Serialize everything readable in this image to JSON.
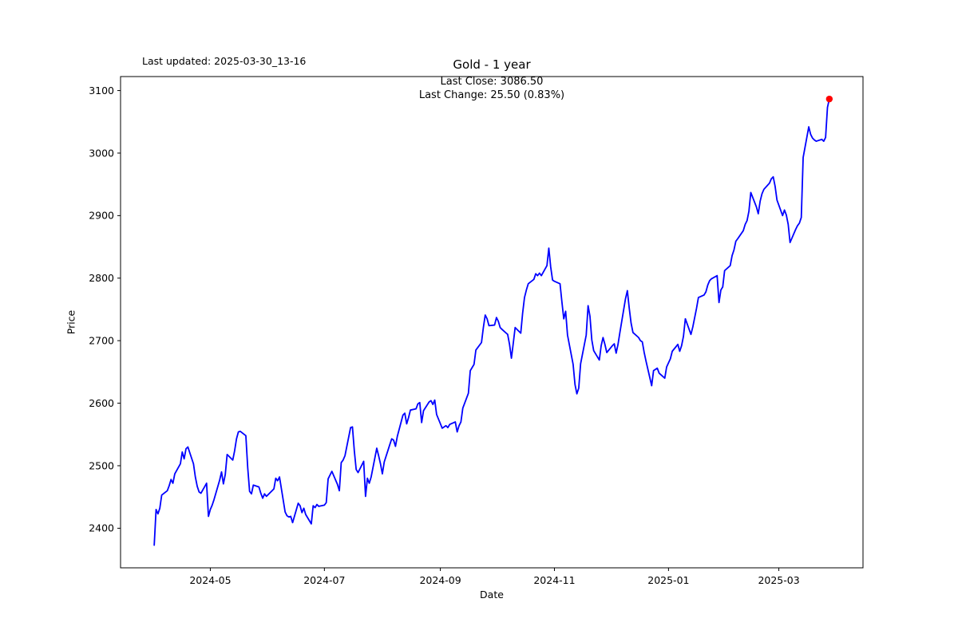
{
  "header": {
    "last_updated": "Last updated: 2025-03-30_13-16",
    "annotation_line1": "Last Close: 3086.50",
    "annotation_line2": "Last Change: 25.50 (0.83%)"
  },
  "chart_data": {
    "type": "line",
    "title": "Gold - 1 year",
    "xlabel": "Date",
    "ylabel": "Price",
    "line_color": "#0000ff",
    "marker_color": "#ff0000",
    "axis_color": "#000000",
    "background_color": "#ffffff",
    "last_close": 3086.5,
    "last_change": "25.50 (0.83%)",
    "x_range": [
      "2024-03-14",
      "2025-04-15"
    ],
    "y_range": [
      2336.7,
      3122.4
    ],
    "grid": false,
    "x_ticks": [
      {
        "date": "2024-05-01",
        "label": "2024-05"
      },
      {
        "date": "2024-07-01",
        "label": "2024-07"
      },
      {
        "date": "2024-09-01",
        "label": "2024-09"
      },
      {
        "date": "2024-11-01",
        "label": "2024-11"
      },
      {
        "date": "2025-01-01",
        "label": "2025-01"
      },
      {
        "date": "2025-03-01",
        "label": "2025-03"
      }
    ],
    "y_ticks": [
      2400,
      2500,
      2600,
      2700,
      2800,
      2900,
      3000,
      3100
    ],
    "series": [
      {
        "name": "Gold",
        "dates": [
          "2024-04-01",
          "2024-04-02",
          "2024-04-03",
          "2024-04-04",
          "2024-04-05",
          "2024-04-08",
          "2024-04-09",
          "2024-04-10",
          "2024-04-11",
          "2024-04-12",
          "2024-04-15",
          "2024-04-16",
          "2024-04-17",
          "2024-04-18",
          "2024-04-19",
          "2024-04-22",
          "2024-04-23",
          "2024-04-24",
          "2024-04-25",
          "2024-04-26",
          "2024-04-29",
          "2024-04-30",
          "2024-05-01",
          "2024-05-02",
          "2024-05-03",
          "2024-05-06",
          "2024-05-07",
          "2024-05-08",
          "2024-05-09",
          "2024-05-10",
          "2024-05-13",
          "2024-05-14",
          "2024-05-15",
          "2024-05-16",
          "2024-05-17",
          "2024-05-20",
          "2024-05-21",
          "2024-05-22",
          "2024-05-23",
          "2024-05-24",
          "2024-05-27",
          "2024-05-28",
          "2024-05-29",
          "2024-05-30",
          "2024-05-31",
          "2024-06-03",
          "2024-06-04",
          "2024-06-05",
          "2024-06-06",
          "2024-06-07",
          "2024-06-10",
          "2024-06-11",
          "2024-06-12",
          "2024-06-13",
          "2024-06-14",
          "2024-06-17",
          "2024-06-18",
          "2024-06-19",
          "2024-06-20",
          "2024-06-21",
          "2024-06-24",
          "2024-06-25",
          "2024-06-26",
          "2024-06-27",
          "2024-06-28",
          "2024-07-01",
          "2024-07-02",
          "2024-07-03",
          "2024-07-05",
          "2024-07-08",
          "2024-07-09",
          "2024-07-10",
          "2024-07-11",
          "2024-07-12",
          "2024-07-15",
          "2024-07-16",
          "2024-07-17",
          "2024-07-18",
          "2024-07-19",
          "2024-07-22",
          "2024-07-23",
          "2024-07-24",
          "2024-07-25",
          "2024-07-26",
          "2024-07-29",
          "2024-07-30",
          "2024-07-31",
          "2024-08-01",
          "2024-08-02",
          "2024-08-05",
          "2024-08-06",
          "2024-08-07",
          "2024-08-08",
          "2024-08-09",
          "2024-08-12",
          "2024-08-13",
          "2024-08-14",
          "2024-08-15",
          "2024-08-16",
          "2024-08-19",
          "2024-08-20",
          "2024-08-21",
          "2024-08-22",
          "2024-08-23",
          "2024-08-26",
          "2024-08-27",
          "2024-08-28",
          "2024-08-29",
          "2024-08-30",
          "2024-09-02",
          "2024-09-03",
          "2024-09-04",
          "2024-09-05",
          "2024-09-06",
          "2024-09-09",
          "2024-09-10",
          "2024-09-11",
          "2024-09-12",
          "2024-09-13",
          "2024-09-16",
          "2024-09-17",
          "2024-09-18",
          "2024-09-19",
          "2024-09-20",
          "2024-09-23",
          "2024-09-24",
          "2024-09-25",
          "2024-09-26",
          "2024-09-27",
          "2024-09-30",
          "2024-10-01",
          "2024-10-02",
          "2024-10-03",
          "2024-10-04",
          "2024-10-07",
          "2024-10-08",
          "2024-10-09",
          "2024-10-10",
          "2024-10-11",
          "2024-10-14",
          "2024-10-15",
          "2024-10-16",
          "2024-10-17",
          "2024-10-18",
          "2024-10-21",
          "2024-10-22",
          "2024-10-23",
          "2024-10-24",
          "2024-10-25",
          "2024-10-28",
          "2024-10-29",
          "2024-10-30",
          "2024-10-31",
          "2024-11-01",
          "2024-11-04",
          "2024-11-05",
          "2024-11-06",
          "2024-11-07",
          "2024-11-08",
          "2024-11-11",
          "2024-11-12",
          "2024-11-13",
          "2024-11-14",
          "2024-11-15",
          "2024-11-18",
          "2024-11-19",
          "2024-11-20",
          "2024-11-21",
          "2024-11-22",
          "2024-11-25",
          "2024-11-26",
          "2024-11-27",
          "2024-11-28",
          "2024-11-29",
          "2024-12-02",
          "2024-12-03",
          "2024-12-04",
          "2024-12-05",
          "2024-12-06",
          "2024-12-09",
          "2024-12-10",
          "2024-12-11",
          "2024-12-12",
          "2024-12-13",
          "2024-12-16",
          "2024-12-17",
          "2024-12-18",
          "2024-12-19",
          "2024-12-20",
          "2024-12-23",
          "2024-12-24",
          "2024-12-26",
          "2024-12-27",
          "2024-12-30",
          "2024-12-31",
          "2025-01-02",
          "2025-01-03",
          "2025-01-06",
          "2025-01-07",
          "2025-01-08",
          "2025-01-09",
          "2025-01-10",
          "2025-01-13",
          "2025-01-14",
          "2025-01-15",
          "2025-01-16",
          "2025-01-17",
          "2025-01-20",
          "2025-01-21",
          "2025-01-22",
          "2025-01-23",
          "2025-01-24",
          "2025-01-27",
          "2025-01-28",
          "2025-01-29",
          "2025-01-30",
          "2025-01-31",
          "2025-02-03",
          "2025-02-04",
          "2025-02-05",
          "2025-02-06",
          "2025-02-07",
          "2025-02-10",
          "2025-02-11",
          "2025-02-12",
          "2025-02-13",
          "2025-02-14",
          "2025-02-17",
          "2025-02-18",
          "2025-02-19",
          "2025-02-20",
          "2025-02-21",
          "2025-02-24",
          "2025-02-25",
          "2025-02-26",
          "2025-02-27",
          "2025-02-28",
          "2025-03-03",
          "2025-03-04",
          "2025-03-05",
          "2025-03-06",
          "2025-03-07",
          "2025-03-10",
          "2025-03-11",
          "2025-03-12",
          "2025-03-13",
          "2025-03-14",
          "2025-03-17",
          "2025-03-18",
          "2025-03-19",
          "2025-03-20",
          "2025-03-21",
          "2025-03-24",
          "2025-03-25",
          "2025-03-26",
          "2025-03-27",
          "2025-03-28"
        ],
        "values": [
          2373,
          2430,
          2423,
          2432,
          2453,
          2460,
          2468,
          2478,
          2472,
          2487,
          2503,
          2522,
          2511,
          2527,
          2530,
          2503,
          2482,
          2467,
          2458,
          2456,
          2472,
          2419,
          2430,
          2437,
          2446,
          2477,
          2490,
          2471,
          2486,
          2518,
          2509,
          2524,
          2543,
          2554,
          2555,
          2548,
          2497,
          2459,
          2455,
          2469,
          2466,
          2456,
          2448,
          2455,
          2451,
          2460,
          2463,
          2480,
          2476,
          2482,
          2426,
          2420,
          2418,
          2419,
          2409,
          2440,
          2436,
          2425,
          2432,
          2422,
          2407,
          2436,
          2433,
          2438,
          2435,
          2437,
          2441,
          2479,
          2491,
          2470,
          2460,
          2505,
          2509,
          2516,
          2561,
          2562,
          2524,
          2494,
          2489,
          2507,
          2451,
          2480,
          2472,
          2482,
          2528,
          2516,
          2503,
          2487,
          2506,
          2534,
          2543,
          2541,
          2531,
          2547,
          2581,
          2584,
          2567,
          2577,
          2589,
          2591,
          2599,
          2601,
          2569,
          2588,
          2602,
          2604,
          2598,
          2605,
          2582,
          2560,
          2562,
          2564,
          2561,
          2566,
          2570,
          2554,
          2564,
          2570,
          2592,
          2616,
          2652,
          2657,
          2662,
          2685,
          2697,
          2721,
          2741,
          2735,
          2724,
          2725,
          2737,
          2731,
          2721,
          2718,
          2710,
          2694,
          2672,
          2696,
          2721,
          2712,
          2744,
          2769,
          2781,
          2791,
          2798,
          2807,
          2804,
          2808,
          2804,
          2820,
          2848,
          2818,
          2797,
          2795,
          2791,
          2762,
          2735,
          2747,
          2709,
          2662,
          2630,
          2615,
          2624,
          2663,
          2709,
          2756,
          2739,
          2701,
          2684,
          2669,
          2692,
          2705,
          2694,
          2681,
          2692,
          2695,
          2680,
          2694,
          2713,
          2767,
          2780,
          2752,
          2728,
          2713,
          2705,
          2700,
          2698,
          2681,
          2667,
          2628,
          2652,
          2656,
          2648,
          2640,
          2658,
          2671,
          2683,
          2694,
          2683,
          2692,
          2707,
          2735,
          2710,
          2722,
          2737,
          2752,
          2769,
          2773,
          2778,
          2789,
          2796,
          2799,
          2804,
          2761,
          2781,
          2786,
          2812,
          2820,
          2836,
          2845,
          2859,
          2863,
          2876,
          2886,
          2892,
          2907,
          2937,
          2914,
          2903,
          2923,
          2935,
          2942,
          2952,
          2959,
          2962,
          2947,
          2925,
          2900,
          2909,
          2901,
          2886,
          2857,
          2878,
          2884,
          2888,
          2897,
          2993,
          3042,
          3030,
          3024,
          3021,
          3019,
          3022,
          3019,
          3025,
          3073,
          3086.5
        ]
      }
    ]
  }
}
